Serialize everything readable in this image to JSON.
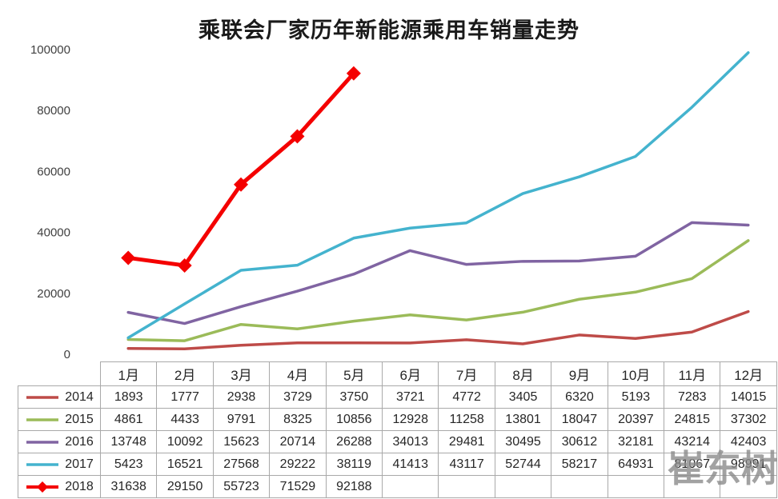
{
  "title": "乘联会厂家历年新能源乘用车销量走势",
  "watermark": "崔东树",
  "chart_data": {
    "type": "line",
    "title": "乘联会厂家历年新能源乘用车销量走势",
    "categories": [
      "1月",
      "2月",
      "3月",
      "4月",
      "5月",
      "6月",
      "7月",
      "8月",
      "9月",
      "10月",
      "11月",
      "12月"
    ],
    "series": [
      {
        "name": "2014",
        "color": "#BE4B48",
        "marker": "none",
        "values": [
          1893,
          1777,
          2938,
          3729,
          3750,
          3721,
          4772,
          3405,
          6320,
          5193,
          7283,
          14015
        ]
      },
      {
        "name": "2015",
        "color": "#9BBB59",
        "marker": "none",
        "values": [
          4861,
          4433,
          9791,
          8325,
          10856,
          12928,
          11258,
          13801,
          18047,
          20397,
          24815,
          37302
        ]
      },
      {
        "name": "2016",
        "color": "#8064A2",
        "marker": "none",
        "values": [
          13748,
          10092,
          15623,
          20714,
          26288,
          34013,
          29481,
          30495,
          30612,
          32181,
          43214,
          42403
        ]
      },
      {
        "name": "2017",
        "color": "#44B3CE",
        "marker": "none",
        "values": [
          5423,
          16521,
          27568,
          29222,
          38119,
          41413,
          43117,
          52744,
          58217,
          64931,
          81067,
          98991
        ]
      },
      {
        "name": "2018",
        "color": "#F40000",
        "marker": "diamond",
        "values": [
          31638,
          29150,
          55723,
          71529,
          92188
        ]
      }
    ],
    "xlabel": "",
    "ylabel": "",
    "ylim": [
      0,
      100000
    ],
    "yticks": [
      0,
      20000,
      40000,
      60000,
      80000,
      100000
    ],
    "grid": false,
    "legend_position": "table-left"
  }
}
